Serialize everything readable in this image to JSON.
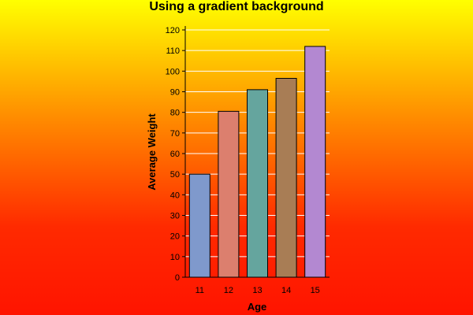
{
  "chart_data": {
    "type": "bar",
    "title": "Using a gradient background",
    "xlabel": "Age",
    "ylabel": "Average Weight",
    "categories": [
      "11",
      "12",
      "13",
      "14",
      "15"
    ],
    "values": [
      50,
      80.5,
      91,
      96.5,
      112
    ],
    "ylim": [
      0,
      120
    ],
    "yticks": [
      0,
      10,
      20,
      30,
      40,
      50,
      60,
      70,
      80,
      90,
      100,
      110,
      120
    ],
    "grid": true,
    "legend": "none",
    "bar_colors": [
      "#7f99cc",
      "#dc7f6e",
      "#65a59e",
      "#a87d55",
      "#b388d1"
    ],
    "background_gradient": [
      "#ffff00",
      "#ff8a00",
      "#ff1400"
    ]
  }
}
